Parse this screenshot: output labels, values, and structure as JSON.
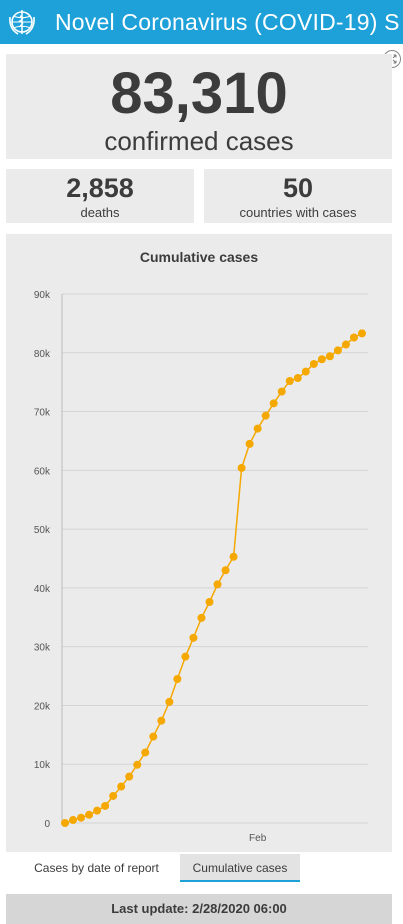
{
  "header": {
    "title": "Novel Coronavirus (COVID-19) S"
  },
  "icons": {
    "logo": "who-emblem-icon",
    "expand": "expand-icon"
  },
  "colors": {
    "header_bg": "#1ea1d9",
    "series": "#f5a800",
    "panel_bg": "#ebebeb"
  },
  "confirmed": {
    "value": "83,310",
    "label": "confirmed cases"
  },
  "deaths": {
    "value": "2,858",
    "label": "deaths"
  },
  "countries": {
    "value": "50",
    "label": "countries with cases"
  },
  "tabs": [
    {
      "label": "Cases by date of report",
      "active": false
    },
    {
      "label": "Cumulative cases",
      "active": true
    }
  ],
  "footer": {
    "text": "Last update: 2/28/2020 06:00"
  },
  "chart_data": {
    "type": "line",
    "title": "Cumulative cases",
    "ylim": [
      0,
      90000
    ],
    "yticks": [
      0,
      10000,
      20000,
      30000,
      40000,
      50000,
      60000,
      70000,
      80000,
      90000
    ],
    "ytick_labels": [
      "0",
      "10k",
      "20k",
      "30k",
      "40k",
      "50k",
      "60k",
      "70k",
      "80k",
      "90k"
    ],
    "xtick_labels": [
      {
        "label": "Feb",
        "at_index": 24
      }
    ],
    "grid": true,
    "series": [
      {
        "values": [
          0,
          500,
          900,
          1400,
          2100,
          2900,
          4600,
          6200,
          7900,
          9900,
          12000,
          14700,
          17400,
          20600,
          24500,
          28300,
          31500,
          34900,
          37600,
          40600,
          43000,
          45300,
          60400,
          64500,
          67100,
          69300,
          71400,
          73400,
          75200,
          75700,
          76800,
          78100,
          78900,
          79400,
          80400,
          81400,
          82600,
          83300
        ]
      }
    ]
  }
}
